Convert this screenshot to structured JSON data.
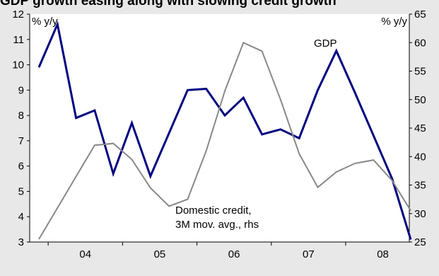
{
  "chart_data": {
    "type": "line",
    "title": "GDP growth easing along with slowing credit growth",
    "left_axis_label": "% y/y",
    "right_axis_label": "% y/y",
    "x_tick_labels": [
      "04",
      "05",
      "06",
      "07",
      "08"
    ],
    "left_ylim": [
      3,
      12
    ],
    "left_ticks": [
      3,
      4,
      5,
      6,
      7,
      8,
      9,
      10,
      11,
      12
    ],
    "right_ylim": [
      25,
      65
    ],
    "right_ticks": [
      25,
      30,
      35,
      40,
      45,
      50,
      55,
      60,
      65
    ],
    "x": [
      "2003Q4",
      "2004Q1",
      "2004Q2",
      "2004Q3",
      "2004Q4",
      "2005Q1",
      "2005Q2",
      "2005Q3",
      "2005Q4",
      "2006Q1",
      "2006Q2",
      "2006Q3",
      "2006Q4",
      "2007Q1",
      "2007Q2",
      "2007Q3",
      "2007Q4",
      "2008Q1",
      "2008Q2",
      "2008Q3",
      "2008Q4"
    ],
    "series": [
      {
        "name": "GDP",
        "axis": "left",
        "color": "#000080",
        "values": [
          9.9,
          11.6,
          7.9,
          8.2,
          5.7,
          7.7,
          5.6,
          7.3,
          9.0,
          9.05,
          8.0,
          8.7,
          7.25,
          7.45,
          7.1,
          9.0,
          10.55,
          8.9,
          7.2,
          5.5,
          3.1
        ]
      },
      {
        "name": "Domestic credit, 3M mov. avg., rhs",
        "axis": "right",
        "color": "#888888",
        "values": [
          25.5,
          31,
          36.5,
          42,
          42.3,
          39.5,
          34.5,
          31.3,
          32.5,
          41,
          51.5,
          60,
          58.5,
          50,
          40.5,
          34.6,
          37.3,
          38.8,
          39.4,
          35.8,
          30.5
        ]
      }
    ],
    "annotations": {
      "gdp": "GDP",
      "credit_line1": "Domestic credit,",
      "credit_line2": "3M mov. avg., rhs"
    }
  }
}
